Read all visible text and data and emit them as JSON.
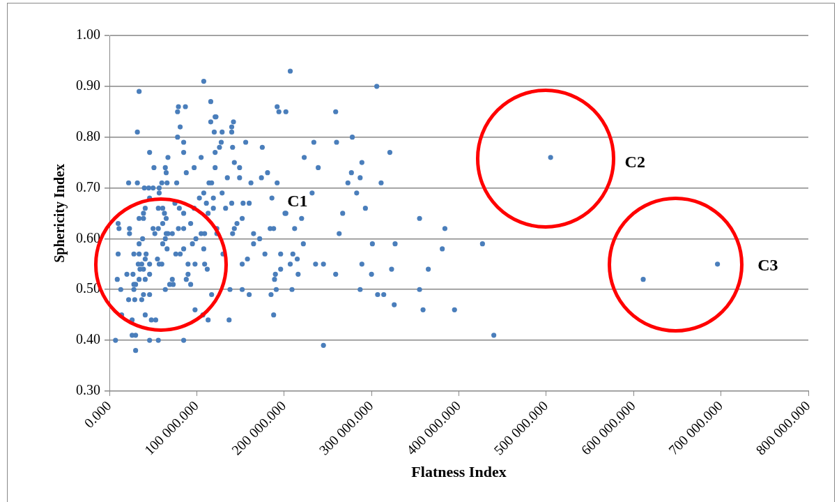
{
  "chart_data": {
    "type": "scatter",
    "xlabel": "Flatness Index",
    "ylabel": "Sphericity Index",
    "color": "#4a7ebb",
    "marker": "circle",
    "grid": "y",
    "xlim": [
      0,
      800000
    ],
    "ylim": [
      0.3,
      1.0
    ],
    "xticks": [
      {
        "value": 0,
        "label": "0.000"
      },
      {
        "value": 100000,
        "label": "100 000.000"
      },
      {
        "value": 200000,
        "label": "200 000.000"
      },
      {
        "value": 300000,
        "label": "300 000.000"
      },
      {
        "value": 400000,
        "label": "400 000.000"
      },
      {
        "value": 500000,
        "label": "500 000.000"
      },
      {
        "value": 600000,
        "label": "600 000.000"
      },
      {
        "value": 700000,
        "label": "700 000.000"
      },
      {
        "value": 800000,
        "label": "800 000.000"
      }
    ],
    "yticks": [
      {
        "value": 0.3,
        "label": "0.30"
      },
      {
        "value": 0.4,
        "label": "0.40"
      },
      {
        "value": 0.5,
        "label": "0.50"
      },
      {
        "value": 0.6,
        "label": "0.60"
      },
      {
        "value": 0.7,
        "label": "0.70"
      },
      {
        "value": 0.8,
        "label": "0.80"
      },
      {
        "value": 0.9,
        "label": "0.90"
      },
      {
        "value": 1.0,
        "label": "1.00"
      }
    ],
    "annotations": [
      "C1",
      "C2",
      "C3"
    ],
    "x": [
      108000,
      34000,
      116000,
      79000,
      87000,
      78000,
      121000,
      116000,
      81000,
      120000,
      78000,
      32000,
      85000,
      85000,
      46000,
      105000,
      67000,
      51000,
      64000,
      65000,
      88000,
      97000,
      22000,
      32000,
      40000,
      45000,
      50000,
      57000,
      60000,
      66000,
      77000,
      114000,
      117000,
      57000,
      46000,
      108000,
      103000,
      75000,
      80000,
      85000,
      97000,
      111000,
      113000,
      119000,
      61000,
      56000,
      63000,
      41000,
      39000,
      39000,
      34000,
      65000,
      61000,
      10000,
      11000,
      23000,
      23000,
      50000,
      56000,
      52000,
      85000,
      93000,
      65000,
      67000,
      72000,
      79000,
      109000,
      105000,
      38000,
      34000,
      64000,
      61000,
      66000,
      76000,
      81000,
      85000,
      95000,
      99000,
      108000,
      10000,
      28000,
      34000,
      42000,
      41000,
      33000,
      37000,
      35000,
      55000,
      57000,
      60000,
      46000,
      39000,
      20000,
      27000,
      46000,
      41000,
      72000,
      90000,
      98000,
      109000,
      112000,
      90000,
      88000,
      93000,
      9000,
      13000,
      28000,
      30000,
      34000,
      28000,
      64000,
      69000,
      73000,
      22000,
      29000,
      37000,
      39000,
      46000,
      117000,
      98000,
      107000,
      113000,
      14000,
      26000,
      41000,
      48000,
      53000,
      26000,
      30000,
      46000,
      56000,
      85000,
      7000,
      30000,
      122000,
      129000,
      140000,
      142000,
      140000,
      192000,
      194000,
      202000,
      207000,
      234000,
      156000,
      175000,
      141000,
      128000,
      126000,
      121000,
      223000,
      239000,
      121000,
      143000,
      149000,
      149000,
      135000,
      181000,
      174000,
      162000,
      192000,
      129000,
      119000,
      133000,
      140000,
      153000,
      160000,
      186000,
      232000,
      201000,
      202000,
      220000,
      212000,
      184000,
      188000,
      152000,
      146000,
      143000,
      141000,
      123000,
      123000,
      165000,
      172000,
      165000,
      222000,
      130000,
      178000,
      196000,
      210000,
      215000,
      158000,
      152000,
      207000,
      196000,
      236000,
      190000,
      216000,
      189000,
      191000,
      209000,
      138000,
      152000,
      160000,
      185000,
      188000,
      137000,
      289000,
      277000,
      287000,
      311000,
      273000,
      283000,
      293000,
      267000,
      355000,
      384000,
      263000,
      301000,
      327000,
      381000,
      427000,
      245000,
      259000,
      300000,
      323000,
      365000,
      289000,
      287000,
      307000,
      314000,
      326000,
      355000,
      359000,
      395000,
      440000,
      245000,
      306000,
      259000,
      260000,
      278000,
      321000,
      505000,
      611000,
      696000
    ],
    "values": [
      0.91,
      0.89,
      0.87,
      0.86,
      0.86,
      0.85,
      0.84,
      0.83,
      0.82,
      0.81,
      0.8,
      0.81,
      0.79,
      0.77,
      0.77,
      0.76,
      0.76,
      0.74,
      0.74,
      0.73,
      0.73,
      0.74,
      0.71,
      0.71,
      0.7,
      0.7,
      0.7,
      0.7,
      0.71,
      0.71,
      0.71,
      0.71,
      0.71,
      0.69,
      0.68,
      0.69,
      0.68,
      0.67,
      0.66,
      0.65,
      0.66,
      0.67,
      0.65,
      0.68,
      0.66,
      0.66,
      0.65,
      0.66,
      0.65,
      0.64,
      0.64,
      0.64,
      0.63,
      0.63,
      0.62,
      0.62,
      0.61,
      0.62,
      0.62,
      0.61,
      0.62,
      0.63,
      0.61,
      0.61,
      0.61,
      0.62,
      0.61,
      0.61,
      0.6,
      0.59,
      0.6,
      0.59,
      0.58,
      0.57,
      0.57,
      0.58,
      0.59,
      0.6,
      0.58,
      0.57,
      0.57,
      0.57,
      0.57,
      0.56,
      0.55,
      0.55,
      0.54,
      0.56,
      0.55,
      0.55,
      0.55,
      0.54,
      0.53,
      0.53,
      0.53,
      0.52,
      0.52,
      0.55,
      0.55,
      0.55,
      0.54,
      0.53,
      0.52,
      0.51,
      0.52,
      0.5,
      0.51,
      0.51,
      0.52,
      0.5,
      0.5,
      0.51,
      0.51,
      0.48,
      0.48,
      0.48,
      0.49,
      0.49,
      0.49,
      0.46,
      0.45,
      0.44,
      0.45,
      0.44,
      0.45,
      0.44,
      0.44,
      0.41,
      0.41,
      0.4,
      0.4,
      0.4,
      0.4,
      0.38,
      0.84,
      0.81,
      0.82,
      0.83,
      0.81,
      0.86,
      0.85,
      0.85,
      0.93,
      0.79,
      0.79,
      0.78,
      0.78,
      0.79,
      0.78,
      0.77,
      0.76,
      0.74,
      0.74,
      0.75,
      0.74,
      0.72,
      0.72,
      0.73,
      0.72,
      0.71,
      0.71,
      0.69,
      0.66,
      0.66,
      0.67,
      0.67,
      0.67,
      0.68,
      0.69,
      0.65,
      0.65,
      0.64,
      0.62,
      0.62,
      0.62,
      0.64,
      0.63,
      0.62,
      0.61,
      0.62,
      0.61,
      0.61,
      0.6,
      0.59,
      0.59,
      0.57,
      0.57,
      0.57,
      0.57,
      0.56,
      0.56,
      0.55,
      0.55,
      0.54,
      0.55,
      0.53,
      0.53,
      0.52,
      0.5,
      0.5,
      0.5,
      0.5,
      0.49,
      0.49,
      0.45,
      0.44,
      0.75,
      0.73,
      0.72,
      0.71,
      0.71,
      0.69,
      0.66,
      0.65,
      0.64,
      0.62,
      0.61,
      0.59,
      0.59,
      0.58,
      0.59,
      0.55,
      0.53,
      0.53,
      0.54,
      0.54,
      0.55,
      0.5,
      0.49,
      0.49,
      0.47,
      0.5,
      0.46,
      0.46,
      0.41,
      0.39,
      0.9,
      0.85,
      0.79,
      0.8,
      0.77,
      0.76,
      0.52,
      0.55
    ]
  }
}
